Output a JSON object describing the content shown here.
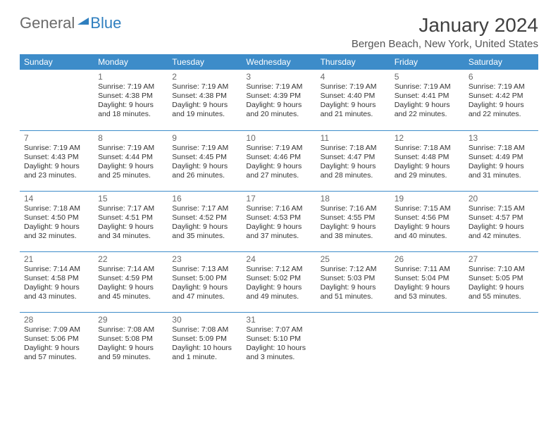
{
  "logo": {
    "word1": "General",
    "word2": "Blue"
  },
  "title": "January 2024",
  "location": "Bergen Beach, New York, United States",
  "colors": {
    "header_bg": "#3d8cc9",
    "header_text": "#ffffff",
    "accent": "#2f7fbf",
    "body_text": "#333333",
    "muted": "#6a6a6a",
    "row_divider": "#3d8cc9",
    "background": "#ffffff"
  },
  "days_of_week": [
    "Sunday",
    "Monday",
    "Tuesday",
    "Wednesday",
    "Thursday",
    "Friday",
    "Saturday"
  ],
  "weeks": [
    [
      null,
      {
        "n": "1",
        "sunrise": "7:19 AM",
        "sunset": "4:38 PM",
        "daylight": "9 hours and 18 minutes."
      },
      {
        "n": "2",
        "sunrise": "7:19 AM",
        "sunset": "4:38 PM",
        "daylight": "9 hours and 19 minutes."
      },
      {
        "n": "3",
        "sunrise": "7:19 AM",
        "sunset": "4:39 PM",
        "daylight": "9 hours and 20 minutes."
      },
      {
        "n": "4",
        "sunrise": "7:19 AM",
        "sunset": "4:40 PM",
        "daylight": "9 hours and 21 minutes."
      },
      {
        "n": "5",
        "sunrise": "7:19 AM",
        "sunset": "4:41 PM",
        "daylight": "9 hours and 22 minutes."
      },
      {
        "n": "6",
        "sunrise": "7:19 AM",
        "sunset": "4:42 PM",
        "daylight": "9 hours and 22 minutes."
      }
    ],
    [
      {
        "n": "7",
        "sunrise": "7:19 AM",
        "sunset": "4:43 PM",
        "daylight": "9 hours and 23 minutes."
      },
      {
        "n": "8",
        "sunrise": "7:19 AM",
        "sunset": "4:44 PM",
        "daylight": "9 hours and 25 minutes."
      },
      {
        "n": "9",
        "sunrise": "7:19 AM",
        "sunset": "4:45 PM",
        "daylight": "9 hours and 26 minutes."
      },
      {
        "n": "10",
        "sunrise": "7:19 AM",
        "sunset": "4:46 PM",
        "daylight": "9 hours and 27 minutes."
      },
      {
        "n": "11",
        "sunrise": "7:18 AM",
        "sunset": "4:47 PM",
        "daylight": "9 hours and 28 minutes."
      },
      {
        "n": "12",
        "sunrise": "7:18 AM",
        "sunset": "4:48 PM",
        "daylight": "9 hours and 29 minutes."
      },
      {
        "n": "13",
        "sunrise": "7:18 AM",
        "sunset": "4:49 PM",
        "daylight": "9 hours and 31 minutes."
      }
    ],
    [
      {
        "n": "14",
        "sunrise": "7:18 AM",
        "sunset": "4:50 PM",
        "daylight": "9 hours and 32 minutes."
      },
      {
        "n": "15",
        "sunrise": "7:17 AM",
        "sunset": "4:51 PM",
        "daylight": "9 hours and 34 minutes."
      },
      {
        "n": "16",
        "sunrise": "7:17 AM",
        "sunset": "4:52 PM",
        "daylight": "9 hours and 35 minutes."
      },
      {
        "n": "17",
        "sunrise": "7:16 AM",
        "sunset": "4:53 PM",
        "daylight": "9 hours and 37 minutes."
      },
      {
        "n": "18",
        "sunrise": "7:16 AM",
        "sunset": "4:55 PM",
        "daylight": "9 hours and 38 minutes."
      },
      {
        "n": "19",
        "sunrise": "7:15 AM",
        "sunset": "4:56 PM",
        "daylight": "9 hours and 40 minutes."
      },
      {
        "n": "20",
        "sunrise": "7:15 AM",
        "sunset": "4:57 PM",
        "daylight": "9 hours and 42 minutes."
      }
    ],
    [
      {
        "n": "21",
        "sunrise": "7:14 AM",
        "sunset": "4:58 PM",
        "daylight": "9 hours and 43 minutes."
      },
      {
        "n": "22",
        "sunrise": "7:14 AM",
        "sunset": "4:59 PM",
        "daylight": "9 hours and 45 minutes."
      },
      {
        "n": "23",
        "sunrise": "7:13 AM",
        "sunset": "5:00 PM",
        "daylight": "9 hours and 47 minutes."
      },
      {
        "n": "24",
        "sunrise": "7:12 AM",
        "sunset": "5:02 PM",
        "daylight": "9 hours and 49 minutes."
      },
      {
        "n": "25",
        "sunrise": "7:12 AM",
        "sunset": "5:03 PM",
        "daylight": "9 hours and 51 minutes."
      },
      {
        "n": "26",
        "sunrise": "7:11 AM",
        "sunset": "5:04 PM",
        "daylight": "9 hours and 53 minutes."
      },
      {
        "n": "27",
        "sunrise": "7:10 AM",
        "sunset": "5:05 PM",
        "daylight": "9 hours and 55 minutes."
      }
    ],
    [
      {
        "n": "28",
        "sunrise": "7:09 AM",
        "sunset": "5:06 PM",
        "daylight": "9 hours and 57 minutes."
      },
      {
        "n": "29",
        "sunrise": "7:08 AM",
        "sunset": "5:08 PM",
        "daylight": "9 hours and 59 minutes."
      },
      {
        "n": "30",
        "sunrise": "7:08 AM",
        "sunset": "5:09 PM",
        "daylight": "10 hours and 1 minute."
      },
      {
        "n": "31",
        "sunrise": "7:07 AM",
        "sunset": "5:10 PM",
        "daylight": "10 hours and 3 minutes."
      },
      null,
      null,
      null
    ]
  ],
  "labels": {
    "sunrise": "Sunrise:",
    "sunset": "Sunset:",
    "daylight": "Daylight:"
  }
}
